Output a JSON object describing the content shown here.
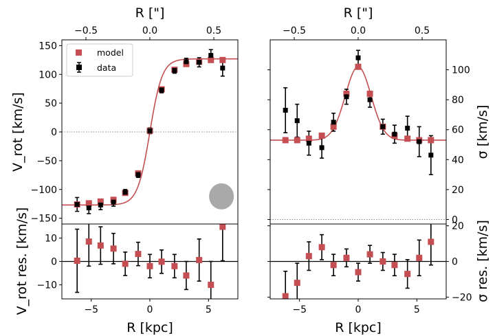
{
  "chart_data": [
    {
      "id": "vrot_top",
      "type": "scatter",
      "ylabel": "V_rot [km/s]",
      "top_xlabel": "R [\"]",
      "xlim": [
        -7.5,
        7.5
      ],
      "ylim": [
        -160,
        160
      ],
      "yticks": [
        -150,
        -100,
        -50,
        0,
        50,
        100,
        150
      ],
      "top_xticks": [
        -0.5,
        0.0,
        0.5
      ],
      "top_xtick_labels": [
        "−0.5",
        "0.0",
        "0.5"
      ],
      "arcsec_to_kpc": 10.9,
      "legend": {
        "placement": "top-left",
        "entries": [
          "model",
          "data"
        ]
      },
      "series": [
        {
          "name": "data",
          "color": "#000000",
          "x": [
            -6.2,
            -5.2,
            -4.2,
            -3.1,
            -2.1,
            -1.0,
            0.0,
            1.0,
            2.1,
            3.1,
            4.2,
            5.2,
            6.2
          ],
          "y": [
            -126,
            -132,
            -127,
            -122,
            -105,
            -74,
            2,
            73,
            107,
            122,
            121,
            133,
            111
          ],
          "err": [
            12,
            10,
            8,
            7,
            5,
            5,
            5,
            5,
            5,
            6,
            8,
            10,
            14
          ]
        },
        {
          "name": "model",
          "color": "#c44e52",
          "x": [
            -6.2,
            -5.2,
            -4.2,
            -3.1,
            -2.1,
            -1.0,
            0.0,
            1.0,
            2.1,
            3.1,
            4.2,
            5.2,
            6.2
          ],
          "y": [
            -126,
            -124,
            -121,
            -118,
            -106,
            -72,
            2,
            74,
            108,
            118,
            122,
            125,
            125
          ]
        }
      ],
      "model_curve": {
        "vmax": 127,
        "scale_kpc": 1.05,
        "offset": 0.0,
        "color": "#c44e52"
      },
      "zero_line": 0,
      "beam": {
        "x": 6.1,
        "y": -112,
        "color": "#a9a9a9"
      }
    },
    {
      "id": "vrot_res",
      "type": "scatter",
      "xlabel": "R [kpc]",
      "ylabel": "V_rot res. [km/s]",
      "xlim": [
        -7.5,
        7.5
      ],
      "ylim": [
        -16,
        16
      ],
      "xticks": [
        -5,
        0,
        5
      ],
      "xtick_labels": [
        "−5",
        "0",
        "5"
      ],
      "yticks": [
        -10,
        0,
        10
      ],
      "ytick_labels": [
        "−10",
        "0",
        "10"
      ],
      "series": [
        {
          "name": "residual",
          "color": "#c44e52",
          "x": [
            -6.2,
            -5.2,
            -4.2,
            -3.1,
            -2.1,
            -1.0,
            0.0,
            1.0,
            2.1,
            3.1,
            4.2,
            5.2,
            6.2
          ],
          "y": [
            0.3,
            8.5,
            6.8,
            5.5,
            -1.0,
            3.2,
            -2.0,
            -0.1,
            -2.0,
            -6.0,
            0.6,
            -10.0,
            14.8
          ],
          "err": [
            13.5,
            10.5,
            8.0,
            6.5,
            5.0,
            5.0,
            5.0,
            5.0,
            5.0,
            6.0,
            9.0,
            10.0,
            14.5
          ]
        }
      ],
      "zero_line": 0
    },
    {
      "id": "sigma_top",
      "type": "scatter",
      "ylabel": "σ [km/s]",
      "top_xlabel": "R [\"]",
      "xlim": [
        -7.5,
        7.5
      ],
      "ylim": [
        -3,
        120
      ],
      "yticks": [
        0,
        20,
        40,
        60,
        80,
        100
      ],
      "top_xticks": [
        -0.5,
        0.0,
        0.5
      ],
      "top_xtick_labels": [
        "−0.5",
        "0.0",
        "0.5"
      ],
      "arcsec_to_kpc": 10.9,
      "series": [
        {
          "name": "data",
          "color": "#000000",
          "x": [
            -6.2,
            -5.2,
            -4.2,
            -3.1,
            -2.1,
            -1.0,
            0.0,
            1.0,
            2.1,
            3.1,
            4.2,
            5.2,
            6.2
          ],
          "y": [
            73,
            66,
            51,
            48,
            65,
            82,
            108,
            80,
            62,
            57,
            61,
            52,
            43
          ],
          "err": [
            15,
            11,
            8,
            7,
            6,
            5,
            5,
            5,
            5,
            6,
            8,
            10,
            13
          ]
        },
        {
          "name": "model",
          "color": "#c44e52",
          "x": [
            -6.2,
            -5.2,
            -4.2,
            -3.1,
            -2.1,
            -1.0,
            0.0,
            1.0,
            2.1,
            3.1,
            4.2,
            5.2,
            6.2
          ],
          "y": [
            53,
            53,
            54,
            56,
            62,
            84,
            102,
            84,
            62,
            56,
            54,
            53,
            53
          ]
        }
      ],
      "model_curve": {
        "base": 53,
        "amp": 49,
        "width_kpc": 1.1,
        "color": "#c44e52"
      },
      "zero_line": 0
    },
    {
      "id": "sigma_res",
      "type": "scatter",
      "xlabel": "R [kpc]",
      "ylabel": "σ res. [km/s]",
      "xlim": [
        -7.5,
        7.5
      ],
      "ylim": [
        -21,
        21
      ],
      "xticks": [
        -5,
        0,
        5
      ],
      "xtick_labels": [
        "−5",
        "0",
        "5"
      ],
      "yticks": [
        -20,
        0,
        20
      ],
      "ytick_labels": [
        "−20",
        "0",
        "20"
      ],
      "series": [
        {
          "name": "residual",
          "color": "#c44e52",
          "x": [
            -6.2,
            -5.2,
            -4.2,
            -3.1,
            -2.1,
            -1.0,
            0.0,
            1.0,
            2.1,
            3.1,
            4.2,
            5.2,
            6.2
          ],
          "y": [
            -19.5,
            -12,
            3,
            8,
            -2,
            2,
            -6,
            4,
            0,
            -2,
            -7,
            2,
            11
          ],
          "err": [
            14,
            11,
            8,
            7,
            6,
            5,
            5,
            5,
            5,
            6,
            8,
            10,
            13
          ]
        }
      ],
      "zero_line": 0
    }
  ]
}
